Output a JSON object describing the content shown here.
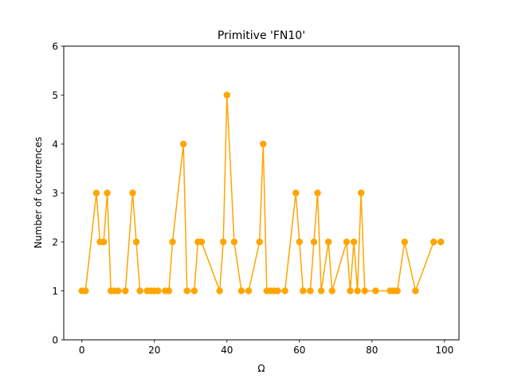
{
  "chart_data": {
    "type": "line",
    "title": "Primitive 'FN10'",
    "xlabel": "Ω",
    "ylabel": "Number of occurrences",
    "xlim": [
      -5,
      104
    ],
    "ylim": [
      0,
      6
    ],
    "xticks": [
      0,
      20,
      40,
      60,
      80,
      100
    ],
    "yticks": [
      0,
      1,
      2,
      3,
      4,
      5,
      6
    ],
    "grid": false,
    "color": "#FFA500",
    "marker": "circle",
    "x": [
      0,
      1,
      4,
      5,
      6,
      7,
      8,
      9,
      10,
      12,
      14,
      15,
      16,
      18,
      19,
      20,
      21,
      23,
      24,
      25,
      28,
      29,
      31,
      32,
      33,
      38,
      39,
      40,
      42,
      44,
      46,
      49,
      50,
      51,
      52,
      53,
      54,
      56,
      59,
      60,
      61,
      63,
      64,
      65,
      66,
      68,
      69,
      73,
      74,
      75,
      76,
      77,
      78,
      81,
      85,
      86,
      87,
      89,
      92,
      97,
      99
    ],
    "y": [
      1,
      1,
      3,
      2,
      2,
      3,
      1,
      1,
      1,
      1,
      3,
      2,
      1,
      1,
      1,
      1,
      1,
      1,
      1,
      2,
      4,
      1,
      1,
      2,
      2,
      1,
      2,
      5,
      2,
      1,
      1,
      2,
      4,
      1,
      1,
      1,
      1,
      1,
      3,
      2,
      1,
      1,
      2,
      3,
      1,
      2,
      1,
      2,
      1,
      2,
      1,
      3,
      1,
      1,
      1,
      1,
      1,
      2,
      1,
      2,
      2
    ]
  }
}
